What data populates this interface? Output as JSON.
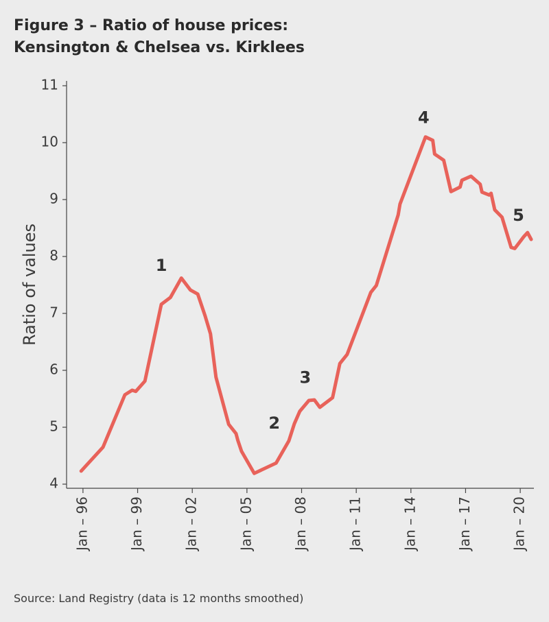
{
  "chart_data": {
    "type": "line",
    "title": "Figure 3 – Ratio of house prices:",
    "subtitle": "Kensington & Chelsea vs. Kirklees",
    "y_label": "Ratio of values",
    "source": "Source: Land Registry (data is 12 months smoothed)",
    "xlim": [
      1995.1,
      2020.75
    ],
    "xticks": [
      {
        "value": 1996,
        "label": "Jan – 96"
      },
      {
        "value": 1999,
        "label": "Jan – 99"
      },
      {
        "value": 2002,
        "label": "Jan – 02"
      },
      {
        "value": 2005,
        "label": "Jan – 05"
      },
      {
        "value": 2008,
        "label": "Jan – 08"
      },
      {
        "value": 2011,
        "label": "Jan – 11"
      },
      {
        "value": 2014,
        "label": "Jan – 14"
      },
      {
        "value": 2017,
        "label": "Jan – 17"
      },
      {
        "value": 2020,
        "label": "Jan – 20"
      }
    ],
    "ylim": [
      4,
      11
    ],
    "yticks": [
      4,
      5,
      6,
      7,
      8,
      9,
      10,
      11
    ],
    "grid": false,
    "series": [
      {
        "name": "Ratio",
        "color": "#e8625a",
        "x": [
          1995.9,
          1997.1,
          1998.3,
          1998.7,
          1998.9,
          1999.4,
          2000.3,
          2000.8,
          2001.4,
          2001.9,
          2002.3,
          2002.7,
          2003.0,
          2003.3,
          2004.0,
          2004.4,
          2004.5,
          2004.7,
          2005.4,
          2006.6,
          2007.3,
          2007.6,
          2007.9,
          2008.4,
          2008.7,
          2009.0,
          2009.7,
          2010.1,
          2010.5,
          2011.8,
          2012.1,
          2013.3,
          2013.4,
          2014.8,
          2015.2,
          2015.3,
          2015.8,
          2016.2,
          2016.7,
          2016.8,
          2017.3,
          2017.8,
          2017.9,
          2018.3,
          2018.4,
          2018.6,
          2019.0,
          2019.5,
          2019.7,
          2020.2,
          2020.4,
          2020.6
        ],
        "values": [
          4.23,
          4.65,
          5.57,
          5.65,
          5.63,
          5.81,
          7.16,
          7.28,
          7.62,
          7.41,
          7.34,
          6.96,
          6.64,
          5.88,
          5.05,
          4.89,
          4.77,
          4.58,
          4.19,
          4.37,
          4.76,
          5.06,
          5.28,
          5.47,
          5.48,
          5.35,
          5.52,
          6.12,
          6.28,
          7.37,
          7.49,
          8.73,
          8.92,
          10.1,
          10.04,
          9.8,
          9.69,
          9.14,
          9.22,
          9.34,
          9.41,
          9.27,
          9.13,
          9.08,
          9.11,
          8.82,
          8.69,
          8.16,
          8.14,
          8.35,
          8.42,
          8.3
        ]
      }
    ],
    "annotations": [
      {
        "text": "1",
        "x": 2000.3,
        "y": 7.83
      },
      {
        "text": "2",
        "x": 2006.5,
        "y": 5.06
      },
      {
        "text": "3",
        "x": 2008.2,
        "y": 5.86
      },
      {
        "text": "4",
        "x": 2014.7,
        "y": 10.43
      },
      {
        "text": "5",
        "x": 2019.9,
        "y": 8.71
      }
    ]
  }
}
